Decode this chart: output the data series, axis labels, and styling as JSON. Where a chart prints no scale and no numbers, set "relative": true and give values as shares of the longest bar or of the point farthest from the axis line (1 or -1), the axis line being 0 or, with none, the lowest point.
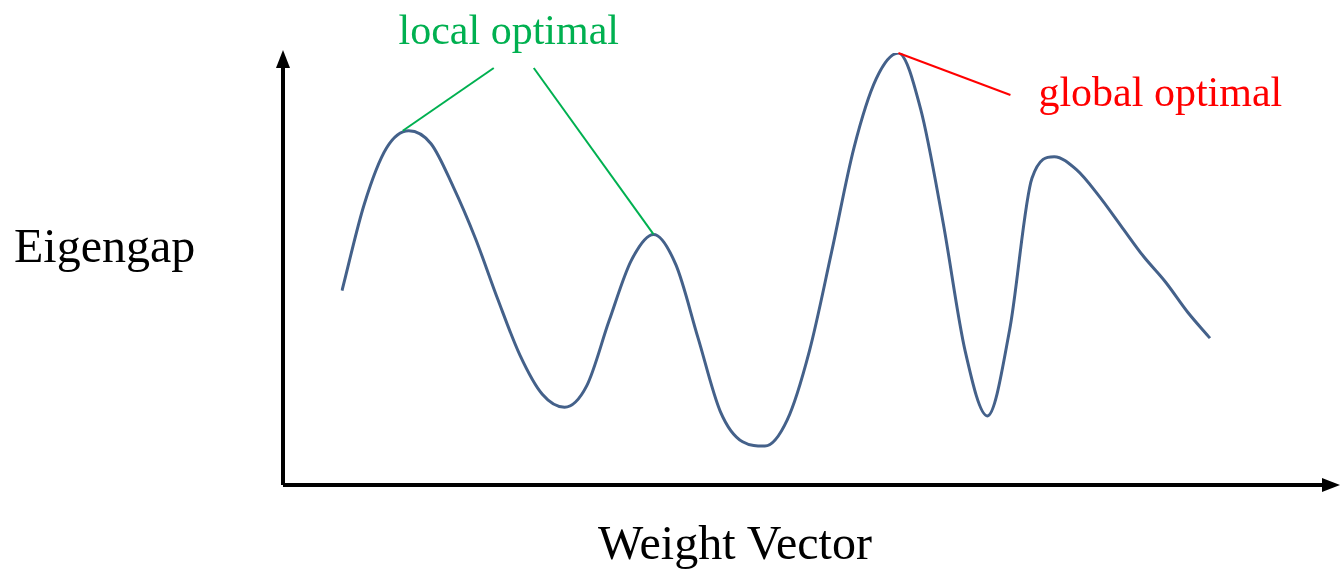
{
  "chart_data": {
    "type": "line",
    "relative": true,
    "xlabel": "Weight Vector",
    "ylabel": "Eigengap",
    "marker": "none",
    "legend": false,
    "categories": [
      null,
      null,
      null,
      null,
      null,
      null,
      null,
      null,
      null,
      null,
      null,
      null,
      null,
      null,
      null,
      null,
      null,
      null,
      null,
      null,
      null,
      null,
      null,
      null,
      null,
      null,
      null,
      null,
      null,
      null,
      null,
      null,
      null,
      null,
      null,
      null,
      null,
      null,
      null,
      null
    ],
    "series": [
      {
        "color": "#44618a",
        "values": [
          0.45,
          0.65,
          0.78,
          0.82,
          0.79,
          0.69,
          0.57,
          0.43,
          0.3,
          0.21,
          0.18,
          0.23,
          0.38,
          0.52,
          0.58,
          0.51,
          0.34,
          0.17,
          0.1,
          0.09,
          0.15,
          0.31,
          0.54,
          0.78,
          0.94,
          1,
          0.87,
          0.61,
          0.31,
          0.16,
          0.36,
          0.71,
          0.76,
          0.73,
          0.67,
          0.6,
          0.53,
          0.47,
          0.4,
          0.34
        ]
      }
    ],
    "annotations": [
      "local optimal",
      "global optimal"
    ]
  }
}
